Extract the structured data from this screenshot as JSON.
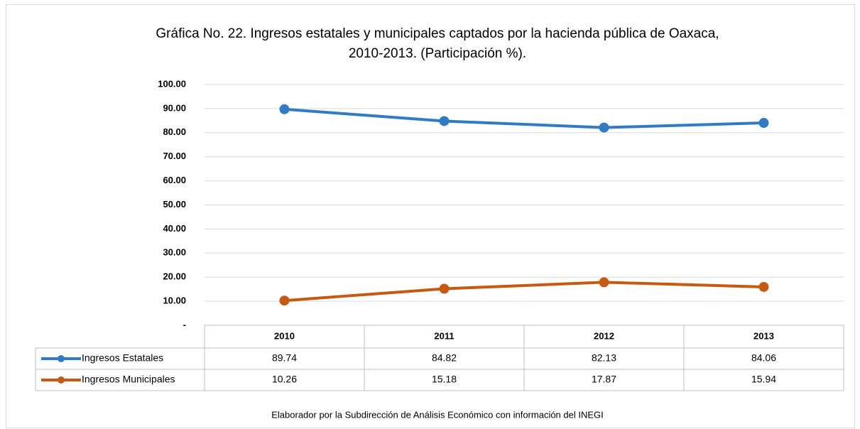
{
  "chart_data": {
    "type": "line",
    "title": [
      "Gráfica No. 22. Ingresos estatales y municipales captados por la hacienda pública de Oaxaca,",
      "2010-2013. (Participación %)."
    ],
    "categories": [
      "2010",
      "2011",
      "2012",
      "2013"
    ],
    "series": [
      {
        "name": "Ingresos Estatales",
        "color": "#2f7bc4",
        "values": [
          89.74,
          84.82,
          82.13,
          84.06
        ]
      },
      {
        "name": "Ingresos Municipales",
        "color": "#c65a13",
        "values": [
          10.26,
          15.18,
          17.87,
          15.94
        ]
      }
    ],
    "ylim": [
      0,
      100
    ],
    "yticks": [
      {
        "value": 0,
        "label": "-"
      },
      {
        "value": 10,
        "label": "10.00"
      },
      {
        "value": 20,
        "label": "20.00"
      },
      {
        "value": 30,
        "label": "30.00"
      },
      {
        "value": 40,
        "label": "40.00"
      },
      {
        "value": 50,
        "label": "50.00"
      },
      {
        "value": 60,
        "label": "60.00"
      },
      {
        "value": 70,
        "label": "70.00"
      },
      {
        "value": 80,
        "label": "80.00"
      },
      {
        "value": 90,
        "label": "90.00"
      },
      {
        "value": 100,
        "label": "100.00"
      }
    ],
    "grid": true,
    "note": "Elaborador por la Subdirección de Análisis Económico con información del INEGI"
  }
}
